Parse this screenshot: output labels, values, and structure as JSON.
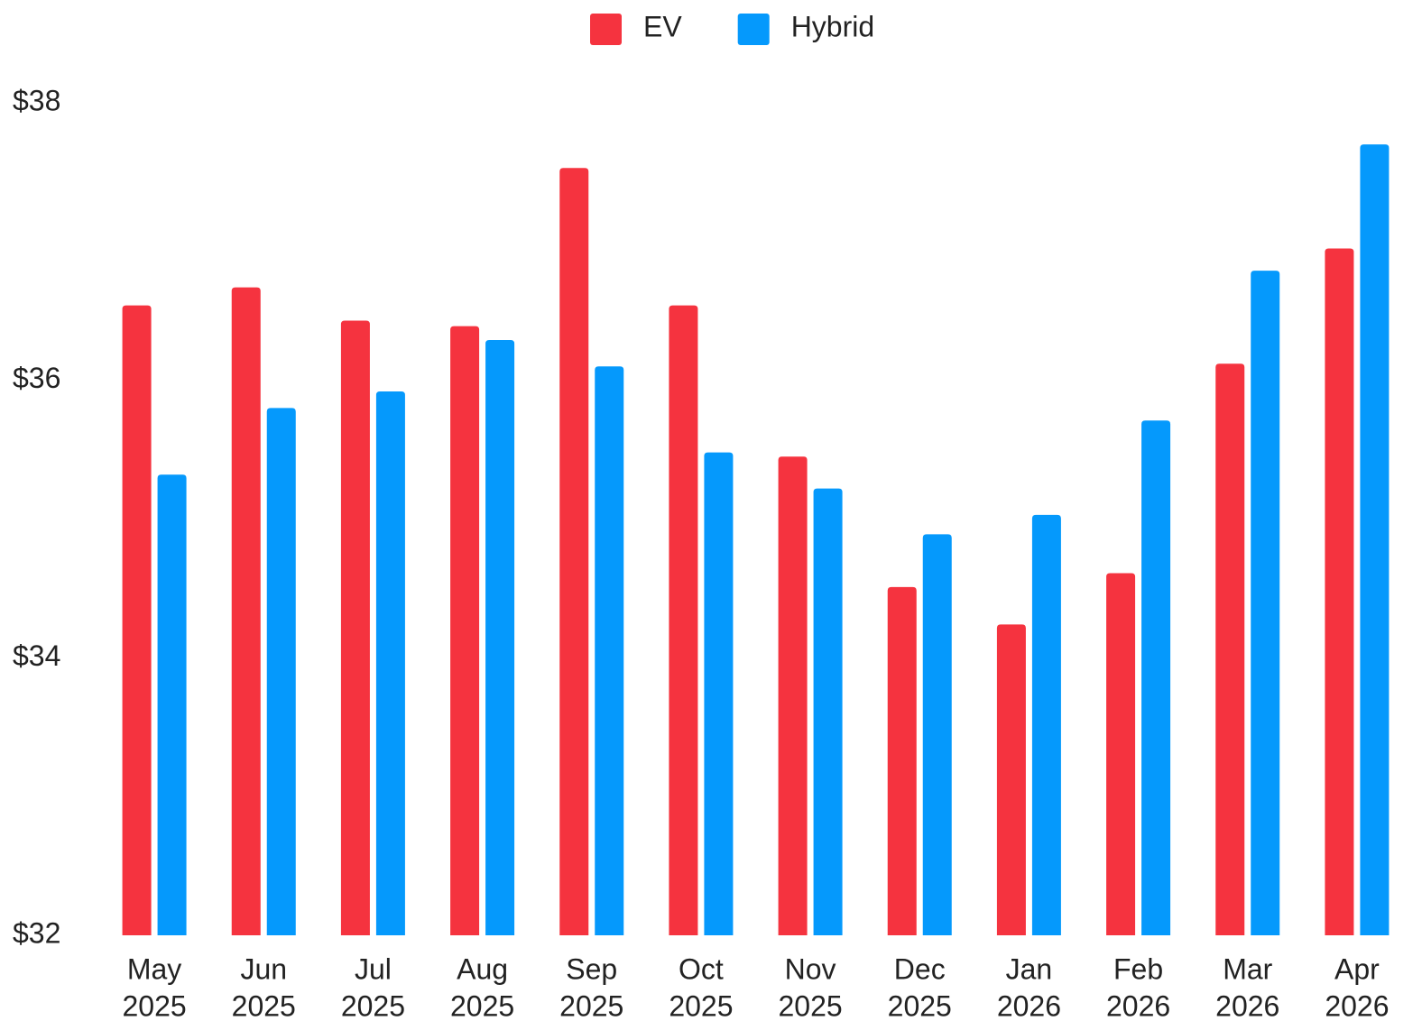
{
  "chart_data": {
    "type": "bar",
    "categories": [
      [
        "May",
        "2025"
      ],
      [
        "Jun",
        "2025"
      ],
      [
        "Jul",
        "2025"
      ],
      [
        "Aug",
        "2025"
      ],
      [
        "Sep",
        "2025"
      ],
      [
        "Oct",
        "2025"
      ],
      [
        "Nov",
        "2025"
      ],
      [
        "Dec",
        "2025"
      ],
      [
        "Jan",
        "2026"
      ],
      [
        "Feb",
        "2026"
      ],
      [
        "Mar",
        "2026"
      ],
      [
        "Apr",
        "2026"
      ]
    ],
    "series": [
      {
        "name": "EV",
        "color": "#f5333f",
        "values": [
          36.54,
          36.67,
          36.43,
          36.39,
          37.53,
          36.54,
          35.45,
          34.51,
          34.24,
          34.61,
          36.12,
          36.95
        ]
      },
      {
        "name": "Hybrid",
        "color": "#0599fc",
        "values": [
          35.32,
          35.8,
          35.92,
          36.29,
          36.1,
          35.48,
          35.22,
          34.89,
          35.03,
          35.71,
          36.79,
          37.7
        ]
      }
    ],
    "ylim": [
      32,
      38
    ],
    "yticks": [
      {
        "value": 32,
        "label": "$32"
      },
      {
        "value": 34,
        "label": "$34"
      },
      {
        "value": 36,
        "label": "$36"
      },
      {
        "value": 38,
        "label": "$38"
      }
    ],
    "grid": false,
    "legend": "top"
  }
}
